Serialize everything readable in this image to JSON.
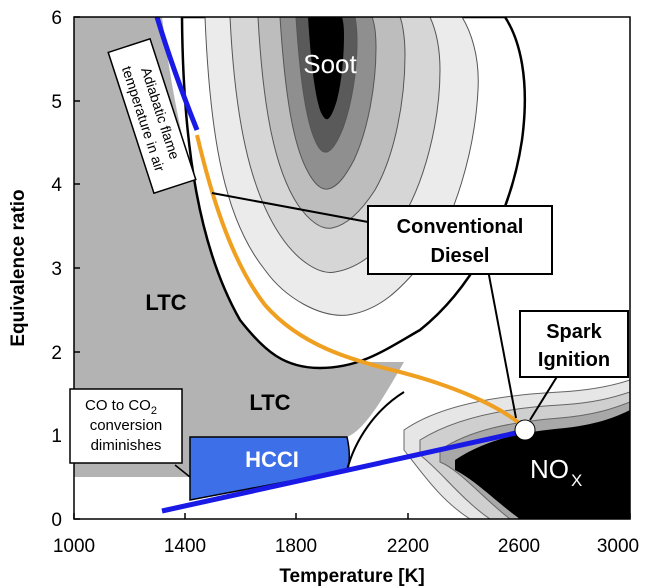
{
  "x_axis": {
    "label": "Temperature [K]",
    "ticks": [
      "1000",
      "1400",
      "1800",
      "2200",
      "2600",
      "3000"
    ]
  },
  "y_axis": {
    "label": "Equivalence ratio",
    "ticks": [
      "0",
      "1",
      "2",
      "3",
      "4",
      "5",
      "6"
    ]
  },
  "labels": {
    "soot": "Soot",
    "nox_main": "NO",
    "nox_sub": "X",
    "ltc_upper": "LTC",
    "ltc_lower": "LTC",
    "hcci": "HCCI",
    "conventional_line1": "Conventional",
    "conventional_line2": "Diesel",
    "spark_line1": "Spark",
    "spark_line2": "Ignition",
    "co_line1_a": "CO to CO",
    "co_line1_sub": "2",
    "co_line2": "conversion",
    "co_line3": "diminishes",
    "adiabatic_line1": "Adiabatic flame",
    "adiabatic_line2": "temperature in air"
  },
  "colors": {
    "ltc_fill": "#b3b3b3",
    "hcci_fill": "#3d6fe8",
    "adiabatic_line": "#1a1ae6",
    "diesel_path": "#f0a020",
    "soot_core": "#000000"
  }
}
